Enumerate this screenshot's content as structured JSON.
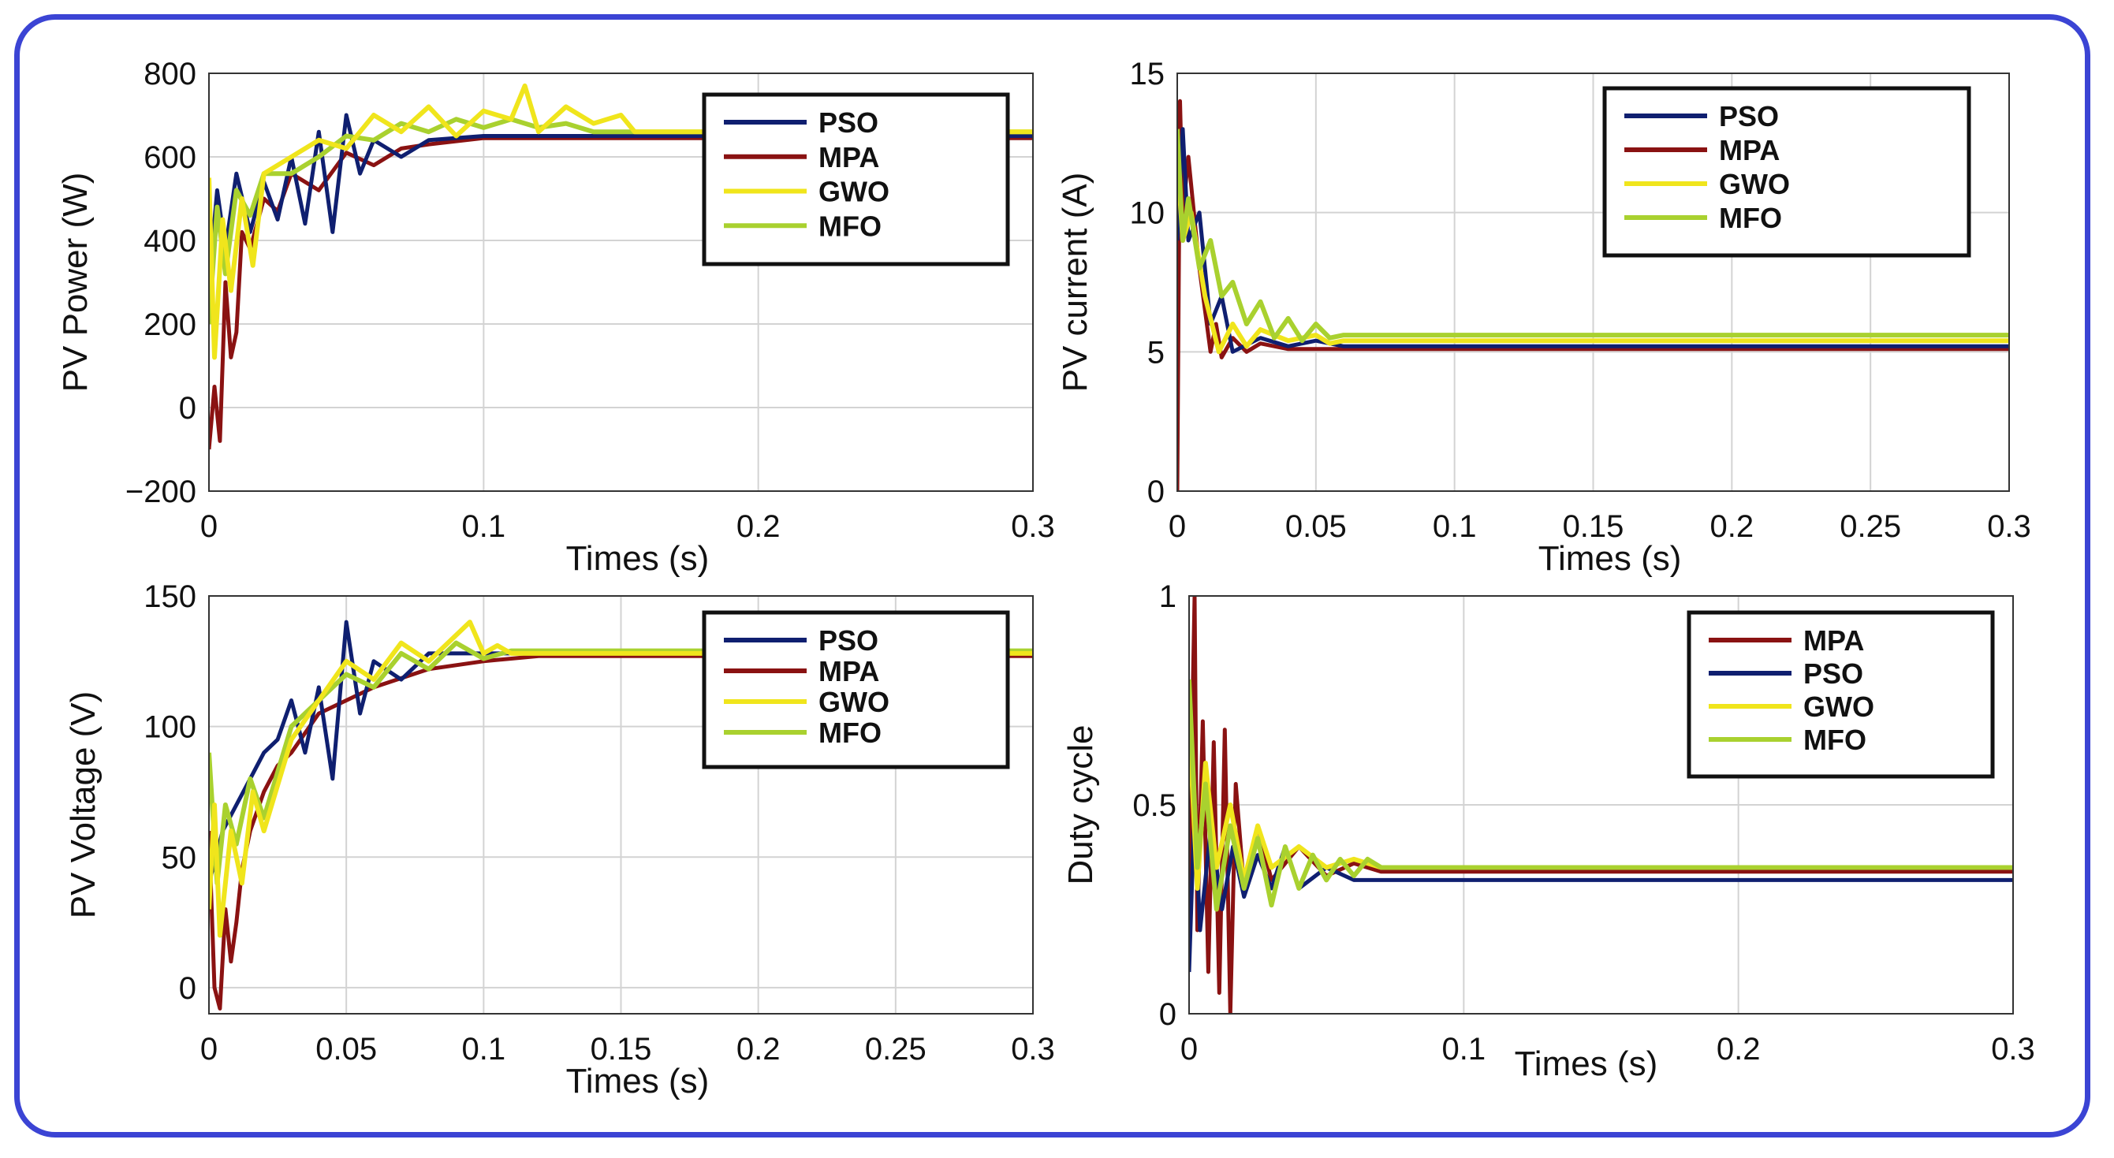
{
  "colors": {
    "PSO": "#0f1f70",
    "MPA": "#8a1212",
    "GWO": "#f0e51c",
    "MFO": "#a9d12f",
    "frame": "#3b44d4",
    "grid": "#d3d3d3"
  },
  "chart_data": [
    {
      "id": "power",
      "type": "line",
      "xlabel": "Times (s)",
      "ylabel": "PV Power (W)",
      "xlim": [
        0,
        0.3
      ],
      "ylim": [
        -200,
        800
      ],
      "xticks": [
        0,
        0.1,
        0.2,
        0.3
      ],
      "xtick_labels": [
        "0",
        "0.1",
        "0.2",
        "0.3"
      ],
      "yticks": [
        -200,
        0,
        200,
        400,
        600,
        800
      ],
      "ytick_labels": [
        "−200",
        "0",
        "200",
        "400",
        "600",
        "800"
      ],
      "legend": [
        "PSO",
        "MPA",
        "GWO",
        "MFO"
      ],
      "legend_position": "top-right",
      "series": [
        {
          "name": "MPA",
          "x": [
            0,
            0.002,
            0.004,
            0.006,
            0.008,
            0.01,
            0.012,
            0.015,
            0.02,
            0.025,
            0.03,
            0.04,
            0.05,
            0.06,
            0.07,
            0.08,
            0.1,
            0.12,
            0.3
          ],
          "y": [
            -100,
            50,
            -80,
            300,
            120,
            180,
            420,
            380,
            500,
            470,
            560,
            520,
            610,
            580,
            620,
            630,
            645,
            645,
            645
          ]
        },
        {
          "name": "PSO",
          "x": [
            0,
            0.003,
            0.006,
            0.01,
            0.015,
            0.02,
            0.025,
            0.03,
            0.035,
            0.04,
            0.045,
            0.05,
            0.055,
            0.06,
            0.07,
            0.08,
            0.1,
            0.12,
            0.3
          ],
          "y": [
            300,
            520,
            380,
            560,
            420,
            540,
            450,
            600,
            440,
            660,
            420,
            700,
            560,
            640,
            600,
            640,
            650,
            650,
            650
          ]
        },
        {
          "name": "MFO",
          "x": [
            0,
            0.003,
            0.006,
            0.01,
            0.015,
            0.02,
            0.03,
            0.04,
            0.05,
            0.06,
            0.07,
            0.08,
            0.09,
            0.1,
            0.11,
            0.12,
            0.13,
            0.14,
            0.15,
            0.3
          ],
          "y": [
            200,
            480,
            320,
            520,
            460,
            560,
            560,
            600,
            650,
            640,
            680,
            660,
            690,
            670,
            690,
            670,
            680,
            660,
            660,
            660
          ]
        },
        {
          "name": "GWO",
          "x": [
            0,
            0.002,
            0.005,
            0.008,
            0.012,
            0.016,
            0.02,
            0.03,
            0.04,
            0.05,
            0.06,
            0.07,
            0.08,
            0.09,
            0.1,
            0.11,
            0.115,
            0.12,
            0.13,
            0.14,
            0.15,
            0.155,
            0.3
          ],
          "y": [
            550,
            120,
            450,
            280,
            500,
            340,
            560,
            600,
            640,
            620,
            700,
            660,
            720,
            650,
            710,
            690,
            770,
            660,
            720,
            680,
            700,
            660,
            660
          ]
        }
      ]
    },
    {
      "id": "current",
      "type": "line",
      "xlabel": "Times (s)",
      "ylabel": "PV current (A)",
      "xlim": [
        0,
        0.3
      ],
      "ylim": [
        0,
        15
      ],
      "xticks": [
        0,
        0.05,
        0.1,
        0.15,
        0.2,
        0.25,
        0.3
      ],
      "xtick_labels": [
        "0",
        "0.05",
        "0.1",
        "0.15",
        "0.2",
        "0.25",
        "0.3"
      ],
      "yticks": [
        0,
        5,
        10,
        15
      ],
      "ytick_labels": [
        "0",
        "5",
        "10",
        "15"
      ],
      "legend": [
        "PSO",
        "MPA",
        "GWO",
        "MFO"
      ],
      "legend_position": "top-right",
      "series": [
        {
          "name": "MPA",
          "x": [
            0,
            0.001,
            0.002,
            0.004,
            0.008,
            0.012,
            0.014,
            0.016,
            0.02,
            0.025,
            0.03,
            0.04,
            0.05,
            0.3
          ],
          "y": [
            0,
            14,
            10,
            12,
            8,
            5,
            6,
            4.8,
            5.5,
            5,
            5.3,
            5.1,
            5.1,
            5.1
          ]
        },
        {
          "name": "PSO",
          "x": [
            0,
            0.002,
            0.004,
            0.008,
            0.012,
            0.016,
            0.02,
            0.03,
            0.04,
            0.05,
            0.06,
            0.3
          ],
          "y": [
            9,
            13,
            9,
            10,
            6,
            7,
            5,
            5.5,
            5.2,
            5.4,
            5.2,
            5.2
          ]
        },
        {
          "name": "GWO",
          "x": [
            0,
            0.002,
            0.005,
            0.01,
            0.015,
            0.02,
            0.025,
            0.03,
            0.04,
            0.05,
            0.055,
            0.06,
            0.3
          ],
          "y": [
            12,
            9,
            10,
            7,
            5,
            6,
            5.2,
            5.8,
            5.4,
            5.6,
            5.3,
            5.4,
            5.4
          ]
        },
        {
          "name": "MFO",
          "x": [
            0,
            0.002,
            0.004,
            0.008,
            0.012,
            0.016,
            0.02,
            0.025,
            0.03,
            0.035,
            0.04,
            0.045,
            0.05,
            0.055,
            0.06,
            0.3
          ],
          "y": [
            13,
            9,
            10.5,
            8,
            9,
            7,
            7.5,
            6,
            6.8,
            5.5,
            6.2,
            5.4,
            6,
            5.5,
            5.6,
            5.6
          ]
        }
      ]
    },
    {
      "id": "voltage",
      "type": "line",
      "xlabel": "Times (s)",
      "ylabel": "PV Voltage (V)",
      "xlim": [
        0,
        0.3
      ],
      "ylim": [
        -10,
        150
      ],
      "xticks": [
        0,
        0.05,
        0.1,
        0.15,
        0.2,
        0.25,
        0.3
      ],
      "xtick_labels": [
        "0",
        "0.05",
        "0.1",
        "0.15",
        "0.2",
        "0.25",
        "0.3"
      ],
      "yticks": [
        0,
        50,
        100,
        150
      ],
      "ytick_labels": [
        "0",
        "50",
        "100",
        "150"
      ],
      "legend": [
        "PSO",
        "MPA",
        "GWO",
        "MFO"
      ],
      "legend_position": "top-right",
      "series": [
        {
          "name": "MPA",
          "x": [
            0,
            0.002,
            0.004,
            0.006,
            0.008,
            0.01,
            0.012,
            0.015,
            0.02,
            0.025,
            0.03,
            0.04,
            0.05,
            0.06,
            0.08,
            0.1,
            0.12,
            0.3
          ],
          "y": [
            60,
            0,
            -8,
            30,
            10,
            25,
            45,
            60,
            75,
            85,
            90,
            105,
            110,
            115,
            122,
            125,
            127,
            127
          ]
        },
        {
          "name": "PSO",
          "x": [
            0,
            0.005,
            0.01,
            0.015,
            0.02,
            0.025,
            0.03,
            0.035,
            0.04,
            0.045,
            0.05,
            0.055,
            0.06,
            0.07,
            0.08,
            0.1,
            0.3
          ],
          "y": [
            40,
            60,
            70,
            80,
            90,
            95,
            110,
            90,
            115,
            80,
            140,
            105,
            125,
            118,
            128,
            128,
            128
          ]
        },
        {
          "name": "MFO",
          "x": [
            0,
            0.003,
            0.006,
            0.01,
            0.015,
            0.02,
            0.03,
            0.04,
            0.05,
            0.06,
            0.07,
            0.08,
            0.09,
            0.1,
            0.11,
            0.3
          ],
          "y": [
            90,
            40,
            70,
            55,
            80,
            65,
            100,
            110,
            120,
            115,
            128,
            122,
            132,
            126,
            129,
            129
          ]
        },
        {
          "name": "GWO",
          "x": [
            0,
            0.002,
            0.004,
            0.008,
            0.012,
            0.016,
            0.02,
            0.03,
            0.04,
            0.05,
            0.06,
            0.07,
            0.08,
            0.09,
            0.095,
            0.1,
            0.105,
            0.11,
            0.3
          ],
          "y": [
            30,
            70,
            20,
            60,
            40,
            75,
            60,
            95,
            110,
            125,
            118,
            132,
            125,
            135,
            140,
            128,
            131,
            128,
            128
          ]
        }
      ]
    },
    {
      "id": "duty",
      "type": "line",
      "xlabel": "Times (s)",
      "ylabel": "Duty cycle",
      "xlim": [
        0,
        0.3
      ],
      "ylim": [
        0,
        1
      ],
      "xticks": [
        0,
        0.1,
        0.2,
        0.3
      ],
      "xtick_labels": [
        "0",
        "0.1",
        "0.2",
        "0.3"
      ],
      "yticks": [
        0,
        0.5,
        1
      ],
      "ytick_labels": [
        "0",
        "0.5",
        "1"
      ],
      "legend": [
        "MPA",
        "PSO",
        "GWO",
        "MFO"
      ],
      "legend_position": "top-right",
      "series": [
        {
          "name": "MPA",
          "x": [
            0,
            0.002,
            0.003,
            0.005,
            0.007,
            0.009,
            0.011,
            0.013,
            0.015,
            0.017,
            0.02,
            0.025,
            0.03,
            0.04,
            0.05,
            0.06,
            0.07,
            0.3
          ],
          "y": [
            0.3,
            1.0,
            0.2,
            0.7,
            0.1,
            0.65,
            0.05,
            0.68,
            0.0,
            0.55,
            0.3,
            0.45,
            0.32,
            0.4,
            0.33,
            0.36,
            0.34,
            0.34
          ]
        },
        {
          "name": "PSO",
          "x": [
            0,
            0.002,
            0.004,
            0.008,
            0.012,
            0.016,
            0.02,
            0.025,
            0.03,
            0.035,
            0.04,
            0.05,
            0.06,
            0.07,
            0.3
          ],
          "y": [
            0.1,
            0.5,
            0.2,
            0.45,
            0.25,
            0.4,
            0.28,
            0.38,
            0.3,
            0.4,
            0.3,
            0.35,
            0.32,
            0.32,
            0.32
          ]
        },
        {
          "name": "GWO",
          "x": [
            0,
            0.003,
            0.006,
            0.01,
            0.015,
            0.02,
            0.025,
            0.03,
            0.04,
            0.05,
            0.06,
            0.07,
            0.3
          ],
          "y": [
            0.7,
            0.3,
            0.6,
            0.35,
            0.5,
            0.32,
            0.45,
            0.35,
            0.4,
            0.35,
            0.37,
            0.35,
            0.35
          ]
        },
        {
          "name": "MFO",
          "x": [
            0,
            0.003,
            0.006,
            0.01,
            0.015,
            0.02,
            0.025,
            0.03,
            0.035,
            0.04,
            0.045,
            0.05,
            0.055,
            0.06,
            0.065,
            0.07,
            0.3
          ],
          "y": [
            0.8,
            0.35,
            0.55,
            0.25,
            0.45,
            0.3,
            0.42,
            0.26,
            0.4,
            0.3,
            0.38,
            0.32,
            0.37,
            0.33,
            0.37,
            0.35,
            0.35
          ]
        }
      ]
    }
  ]
}
